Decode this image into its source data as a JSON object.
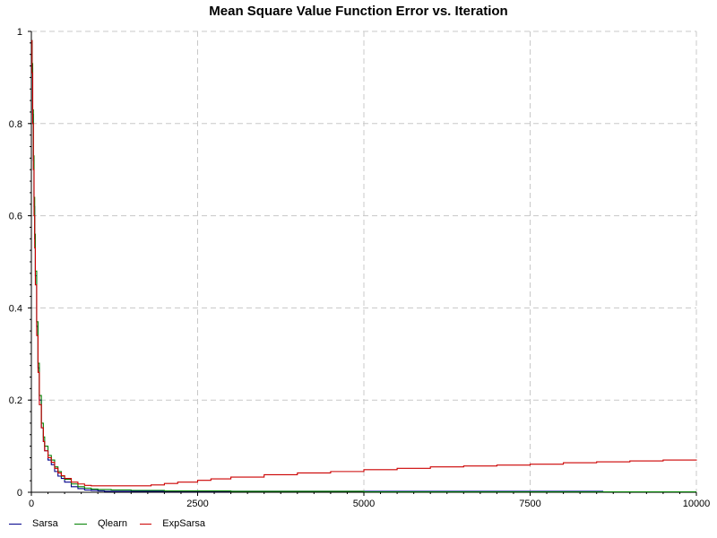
{
  "chart_data": {
    "type": "line",
    "title": "Mean Square Value Function Error vs. Iteration",
    "xlabel": "",
    "ylabel": "",
    "xlim": [
      0,
      10000
    ],
    "ylim": [
      0,
      1
    ],
    "x_ticks": [
      0,
      2500,
      5000,
      7500,
      10000
    ],
    "x_tick_labels": [
      "0",
      "2500",
      "5000",
      "7500",
      "10000"
    ],
    "y_ticks": [
      0,
      0.2,
      0.4,
      0.6,
      0.8,
      1
    ],
    "y_tick_labels": [
      "0",
      "0.2",
      "0.4",
      "0.6",
      "0.8",
      "1"
    ],
    "grid": true,
    "legend_position": "bottom-left",
    "series": [
      {
        "name": "Sarsa",
        "color": "#00008b",
        "x": [
          0,
          10,
          20,
          30,
          40,
          50,
          60,
          80,
          100,
          120,
          150,
          180,
          200,
          250,
          300,
          350,
          400,
          450,
          500,
          600,
          700,
          800,
          900,
          1000,
          1100,
          1500,
          2000,
          3000,
          4000,
          5000,
          6000,
          7000,
          8000,
          8600
        ],
        "y": [
          0.98,
          0.92,
          0.82,
          0.72,
          0.62,
          0.55,
          0.47,
          0.36,
          0.27,
          0.2,
          0.14,
          0.11,
          0.09,
          0.07,
          0.06,
          0.045,
          0.035,
          0.03,
          0.022,
          0.012,
          0.008,
          0.005,
          0.004,
          0.003,
          0.002,
          0.002,
          0.002,
          0.002,
          0.002,
          0.002,
          0.002,
          0.002,
          0.002,
          0.002
        ]
      },
      {
        "name": "Qlearn",
        "color": "#008000",
        "x": [
          0,
          10,
          20,
          30,
          40,
          50,
          60,
          80,
          100,
          120,
          150,
          180,
          200,
          250,
          300,
          350,
          400,
          450,
          500,
          600,
          700,
          800,
          900,
          1000,
          1200,
          1500,
          2000,
          3000,
          4000,
          5000,
          6000,
          7000,
          8000,
          9000,
          10000
        ],
        "y": [
          0.98,
          0.93,
          0.83,
          0.73,
          0.64,
          0.56,
          0.48,
          0.37,
          0.28,
          0.21,
          0.15,
          0.12,
          0.1,
          0.08,
          0.07,
          0.055,
          0.045,
          0.035,
          0.028,
          0.018,
          0.012,
          0.009,
          0.007,
          0.006,
          0.005,
          0.004,
          0.003,
          0.002,
          0.002,
          0.001,
          0.001,
          0.001,
          0.001,
          0.001,
          0.001
        ]
      },
      {
        "name": "ExpSarsa",
        "color": "#cc0000",
        "x": [
          0,
          10,
          20,
          30,
          40,
          50,
          60,
          80,
          100,
          120,
          150,
          180,
          200,
          250,
          300,
          350,
          400,
          450,
          500,
          600,
          700,
          800,
          900,
          1000,
          1200,
          1500,
          1800,
          2000,
          2200,
          2500,
          2700,
          3000,
          3500,
          4000,
          4500,
          5000,
          5500,
          6000,
          6500,
          7000,
          7500,
          8000,
          8500,
          9000,
          9500,
          10000
        ],
        "y": [
          0.98,
          0.91,
          0.8,
          0.7,
          0.6,
          0.53,
          0.45,
          0.34,
          0.26,
          0.19,
          0.14,
          0.11,
          0.09,
          0.075,
          0.065,
          0.052,
          0.042,
          0.036,
          0.03,
          0.022,
          0.018,
          0.015,
          0.014,
          0.014,
          0.014,
          0.014,
          0.016,
          0.019,
          0.022,
          0.026,
          0.029,
          0.033,
          0.038,
          0.042,
          0.045,
          0.049,
          0.052,
          0.055,
          0.057,
          0.059,
          0.061,
          0.064,
          0.066,
          0.068,
          0.07,
          0.071
        ]
      }
    ]
  }
}
